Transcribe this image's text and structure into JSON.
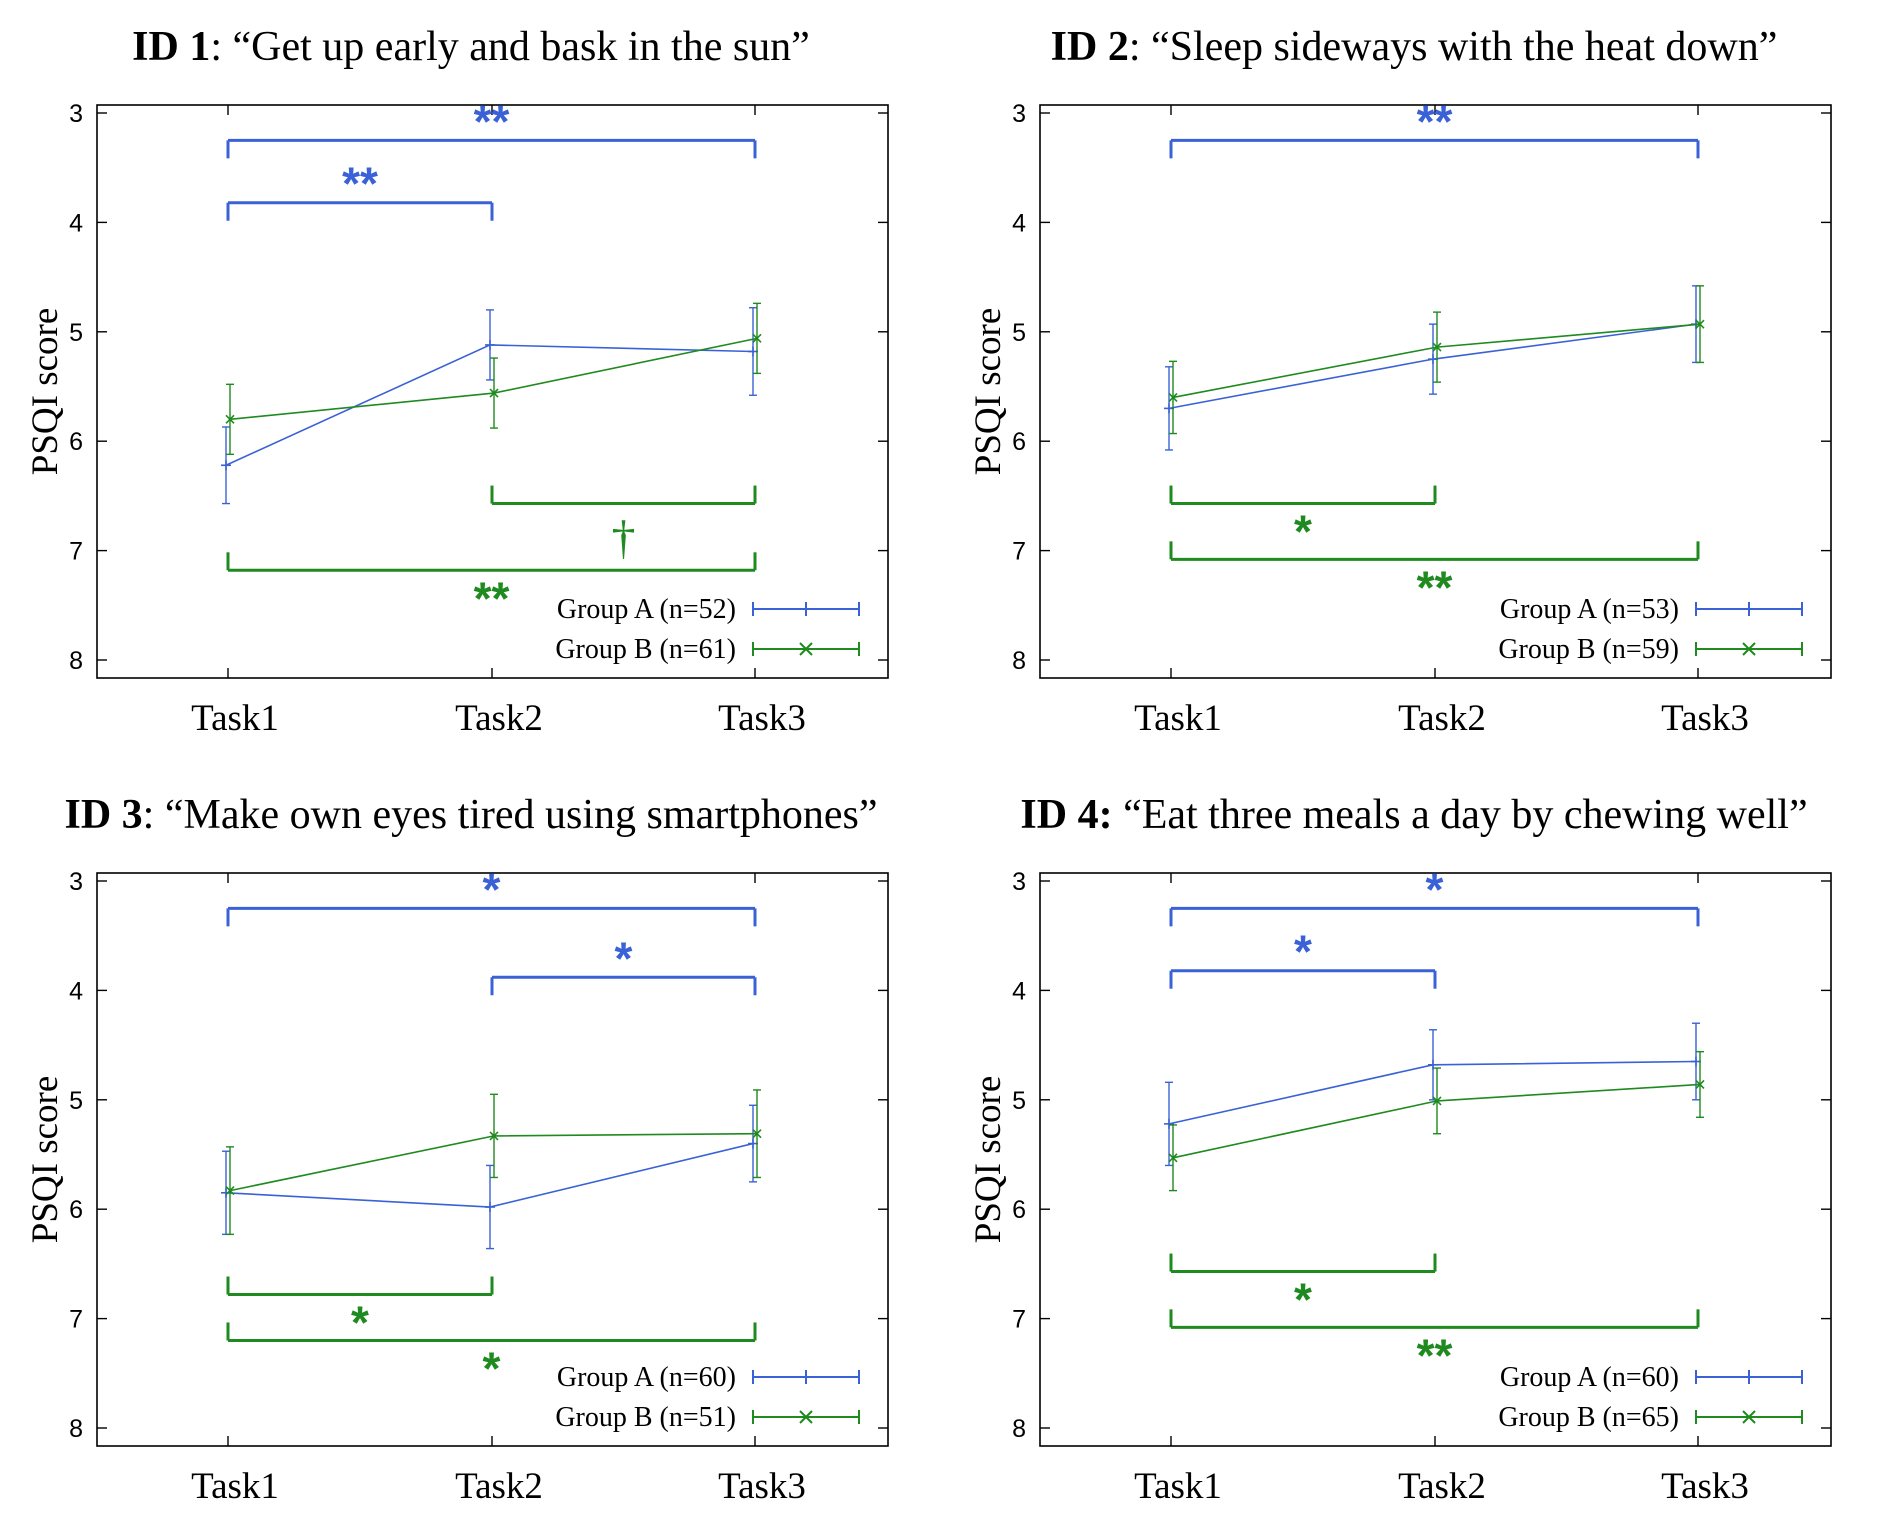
{
  "colors": {
    "group_a": "#3a62d6",
    "group_b": "#1f8a1f",
    "axis": "#000000"
  },
  "chart_data": [
    {
      "type": "line",
      "title": {
        "id": "ID 1",
        "text": ": “Get up early and bask in the sun”"
      },
      "ylabel": "PSQI score",
      "ylim": [
        8,
        3
      ],
      "y_inverted": true,
      "yticks": [
        "3",
        "4",
        "5",
        "6",
        "7",
        "8"
      ],
      "categories": [
        "Task1",
        "Task2",
        "Task3"
      ],
      "legend_position": "bottom-right",
      "series": [
        {
          "name": "Group A (n=52)",
          "group": "A",
          "values": [
            6.22,
            5.12,
            5.18
          ],
          "err": [
            0.35,
            0.32,
            0.4
          ]
        },
        {
          "name": "Group B (n=61)",
          "group": "B",
          "values": [
            5.8,
            5.56,
            5.06
          ],
          "err": [
            0.32,
            0.32,
            0.32
          ]
        }
      ],
      "brackets": [
        {
          "group": "A",
          "from": 0,
          "to": 2,
          "y": 3.25,
          "label": "**"
        },
        {
          "group": "A",
          "from": 0,
          "to": 1,
          "y": 3.82,
          "label": "**"
        },
        {
          "group": "B",
          "from": 1,
          "to": 2,
          "y": 6.57,
          "label": "†"
        },
        {
          "group": "B",
          "from": 0,
          "to": 2,
          "y": 7.18,
          "label": "**"
        }
      ]
    },
    {
      "type": "line",
      "title": {
        "id": "ID 2",
        "text": ": “Sleep sideways with the heat down”"
      },
      "ylabel": "PSQI score",
      "ylim": [
        8,
        3
      ],
      "y_inverted": true,
      "yticks": [
        "3",
        "4",
        "5",
        "6",
        "7",
        "8"
      ],
      "categories": [
        "Task1",
        "Task2",
        "Task3"
      ],
      "legend_position": "bottom-right",
      "series": [
        {
          "name": "Group A (n=53)",
          "group": "A",
          "values": [
            5.7,
            5.25,
            4.93
          ],
          "err": [
            0.38,
            0.32,
            0.35
          ]
        },
        {
          "name": "Group B (n=59)",
          "group": "B",
          "values": [
            5.6,
            5.14,
            4.93
          ],
          "err": [
            0.33,
            0.32,
            0.35
          ]
        }
      ],
      "brackets": [
        {
          "group": "A",
          "from": 0,
          "to": 2,
          "y": 3.25,
          "label": "**"
        },
        {
          "group": "B",
          "from": 0,
          "to": 1,
          "y": 6.57,
          "label": "*"
        },
        {
          "group": "B",
          "from": 0,
          "to": 2,
          "y": 7.08,
          "label": "**"
        }
      ]
    },
    {
      "type": "line",
      "title": {
        "id": "ID 3",
        "text": ": “Make own eyes tired using smartphones”"
      },
      "ylabel": "PSQI score",
      "ylim": [
        8,
        3
      ],
      "y_inverted": true,
      "yticks": [
        "3",
        "4",
        "5",
        "6",
        "7",
        "8"
      ],
      "categories": [
        "Task1",
        "Task2",
        "Task3"
      ],
      "legend_position": "bottom-right",
      "series": [
        {
          "name": "Group A (n=60)",
          "group": "A",
          "values": [
            5.85,
            5.98,
            5.4
          ],
          "err": [
            0.38,
            0.38,
            0.35
          ]
        },
        {
          "name": "Group B (n=51)",
          "group": "B",
          "values": [
            5.83,
            5.33,
            5.31
          ],
          "err": [
            0.4,
            0.38,
            0.4
          ]
        }
      ],
      "brackets": [
        {
          "group": "A",
          "from": 0,
          "to": 2,
          "y": 3.25,
          "label": "*"
        },
        {
          "group": "A",
          "from": 1,
          "to": 2,
          "y": 3.88,
          "label": "*"
        },
        {
          "group": "B",
          "from": 0,
          "to": 1,
          "y": 6.78,
          "label": "*"
        },
        {
          "group": "B",
          "from": 0,
          "to": 2,
          "y": 7.2,
          "label": "*"
        }
      ]
    },
    {
      "type": "line",
      "title": {
        "id": "ID 4:",
        "text": " “Eat three meals a day by chewing well”"
      },
      "ylabel": "PSQI score",
      "ylim": [
        8,
        3
      ],
      "y_inverted": true,
      "yticks": [
        "3",
        "4",
        "5",
        "6",
        "7",
        "8"
      ],
      "categories": [
        "Task1",
        "Task2",
        "Task3"
      ],
      "legend_position": "bottom-right",
      "series": [
        {
          "name": "Group A (n=60)",
          "group": "A",
          "values": [
            5.22,
            4.68,
            4.65
          ],
          "err": [
            0.38,
            0.32,
            0.35
          ]
        },
        {
          "name": "Group B (n=65)",
          "group": "B",
          "values": [
            5.53,
            5.01,
            4.86
          ],
          "err": [
            0.3,
            0.3,
            0.3
          ]
        }
      ],
      "brackets": [
        {
          "group": "A",
          "from": 0,
          "to": 2,
          "y": 3.25,
          "label": "*"
        },
        {
          "group": "A",
          "from": 0,
          "to": 1,
          "y": 3.82,
          "label": "*"
        },
        {
          "group": "B",
          "from": 0,
          "to": 1,
          "y": 6.57,
          "label": "*"
        },
        {
          "group": "B",
          "from": 0,
          "to": 2,
          "y": 7.08,
          "label": "**"
        }
      ]
    }
  ]
}
